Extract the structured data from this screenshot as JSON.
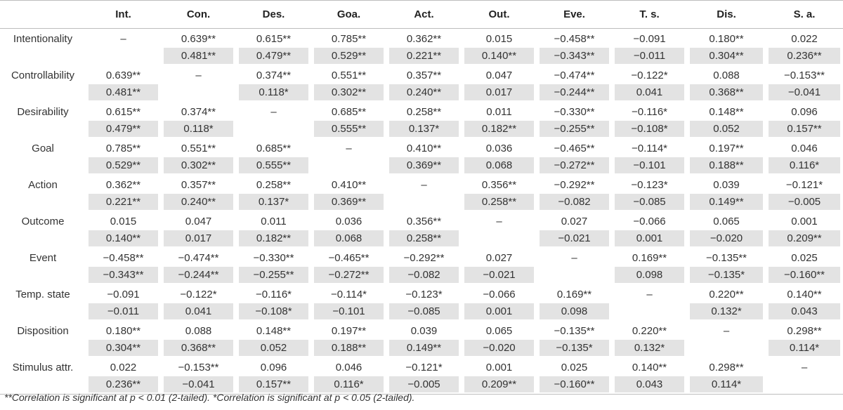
{
  "table": {
    "columns": [
      "",
      "Int.",
      "Con.",
      "Des.",
      "Goa.",
      "Act.",
      "Out.",
      "Eve.",
      "T. s.",
      "Dis.",
      "S. a."
    ],
    "rows": [
      {
        "label": "Intentionality",
        "top": [
          "–",
          "0.639**",
          "0.615**",
          "0.785**",
          "0.362**",
          "0.015",
          "−0.458**",
          "−0.091",
          "0.180**",
          "0.022"
        ],
        "bottom": [
          "",
          "0.481**",
          "0.479**",
          "0.529**",
          "0.221**",
          "0.140**",
          "−0.343**",
          "−0.011",
          "0.304**",
          "0.236**"
        ]
      },
      {
        "label": "Controllability",
        "top": [
          "0.639**",
          "–",
          "0.374**",
          "0.551**",
          "0.357**",
          "0.047",
          "−0.474**",
          "−0.122*",
          "0.088",
          "−0.153**"
        ],
        "bottom": [
          "0.481**",
          "",
          "0.118*",
          "0.302**",
          "0.240**",
          "0.017",
          "−0.244**",
          "0.041",
          "0.368**",
          "−0.041"
        ]
      },
      {
        "label": "Desirability",
        "top": [
          "0.615**",
          "0.374**",
          "–",
          "0.685**",
          "0.258**",
          "0.011",
          "−0.330**",
          "−0.116*",
          "0.148**",
          "0.096"
        ],
        "bottom": [
          "0.479**",
          "0.118*",
          "",
          "0.555**",
          "0.137*",
          "0.182**",
          "−0.255**",
          "−0.108*",
          "0.052",
          "0.157**"
        ]
      },
      {
        "label": "Goal",
        "top": [
          "0.785**",
          "0.551**",
          "0.685**",
          "–",
          "0.410**",
          "0.036",
          "−0.465**",
          "−0.114*",
          "0.197**",
          "0.046"
        ],
        "bottom": [
          "0.529**",
          "0.302**",
          "0.555**",
          "",
          "0.369**",
          "0.068",
          "−0.272**",
          "−0.101",
          "0.188**",
          "0.116*"
        ]
      },
      {
        "label": "Action",
        "top": [
          "0.362**",
          "0.357**",
          "0.258**",
          "0.410**",
          "–",
          "0.356**",
          "−0.292**",
          "−0.123*",
          "0.039",
          "−0.121*"
        ],
        "bottom": [
          "0.221**",
          "0.240**",
          "0.137*",
          "0.369**",
          "",
          "0.258**",
          "−0.082",
          "−0.085",
          "0.149**",
          "−0.005"
        ]
      },
      {
        "label": "Outcome",
        "top": [
          "0.015",
          "0.047",
          "0.011",
          "0.036",
          "0.356**",
          "–",
          "0.027",
          "−0.066",
          "0.065",
          "0.001"
        ],
        "bottom": [
          "0.140**",
          "0.017",
          "0.182**",
          "0.068",
          "0.258**",
          "",
          "−0.021",
          "0.001",
          "−0.020",
          "0.209**"
        ]
      },
      {
        "label": "Event",
        "top": [
          "−0.458**",
          "−0.474**",
          "−0.330**",
          "−0.465**",
          "−0.292**",
          "0.027",
          "–",
          "0.169**",
          "−0.135**",
          "0.025"
        ],
        "bottom": [
          "−0.343**",
          "−0.244**",
          "−0.255**",
          "−0.272**",
          "−0.082",
          "−0.021",
          "",
          "0.098",
          "−0.135*",
          "−0.160**"
        ]
      },
      {
        "label": "Temp. state",
        "top": [
          "−0.091",
          "−0.122*",
          "−0.116*",
          "−0.114*",
          "−0.123*",
          "−0.066",
          "0.169**",
          "–",
          "0.220**",
          "0.140**"
        ],
        "bottom": [
          "−0.011",
          "0.041",
          "−0.108*",
          "−0.101",
          "−0.085",
          "0.001",
          "0.098",
          "",
          "0.132*",
          "0.043"
        ]
      },
      {
        "label": "Disposition",
        "top": [
          "0.180**",
          "0.088",
          "0.148**",
          "0.197**",
          "0.039",
          "0.065",
          "−0.135**",
          "0.220**",
          "–",
          "0.298**"
        ],
        "bottom": [
          "0.304**",
          "0.368**",
          "0.052",
          "0.188**",
          "0.149**",
          "−0.020",
          "−0.135*",
          "0.132*",
          "",
          "0.114*"
        ]
      },
      {
        "label": "Stimulus attr.",
        "top": [
          "0.022",
          "−0.153**",
          "0.096",
          "0.046",
          "−0.121*",
          "0.001",
          "0.025",
          "0.140**",
          "0.298**",
          "–"
        ],
        "bottom": [
          "0.236**",
          "−0.041",
          "0.157**",
          "0.116*",
          "−0.005",
          "0.209**",
          "−0.160**",
          "0.043",
          "0.114*",
          ""
        ]
      }
    ]
  },
  "note": {
    "text_a": "**",
    "text_b": "Correlation is significant at p < 0.01 (2-tailed). ",
    "text_c": "*",
    "text_d": "Correlation is significant at p < 0.05 (2-tailed)."
  },
  "colors": {
    "shade": "#e3e3e3",
    "rule": "#bdbdbd"
  }
}
